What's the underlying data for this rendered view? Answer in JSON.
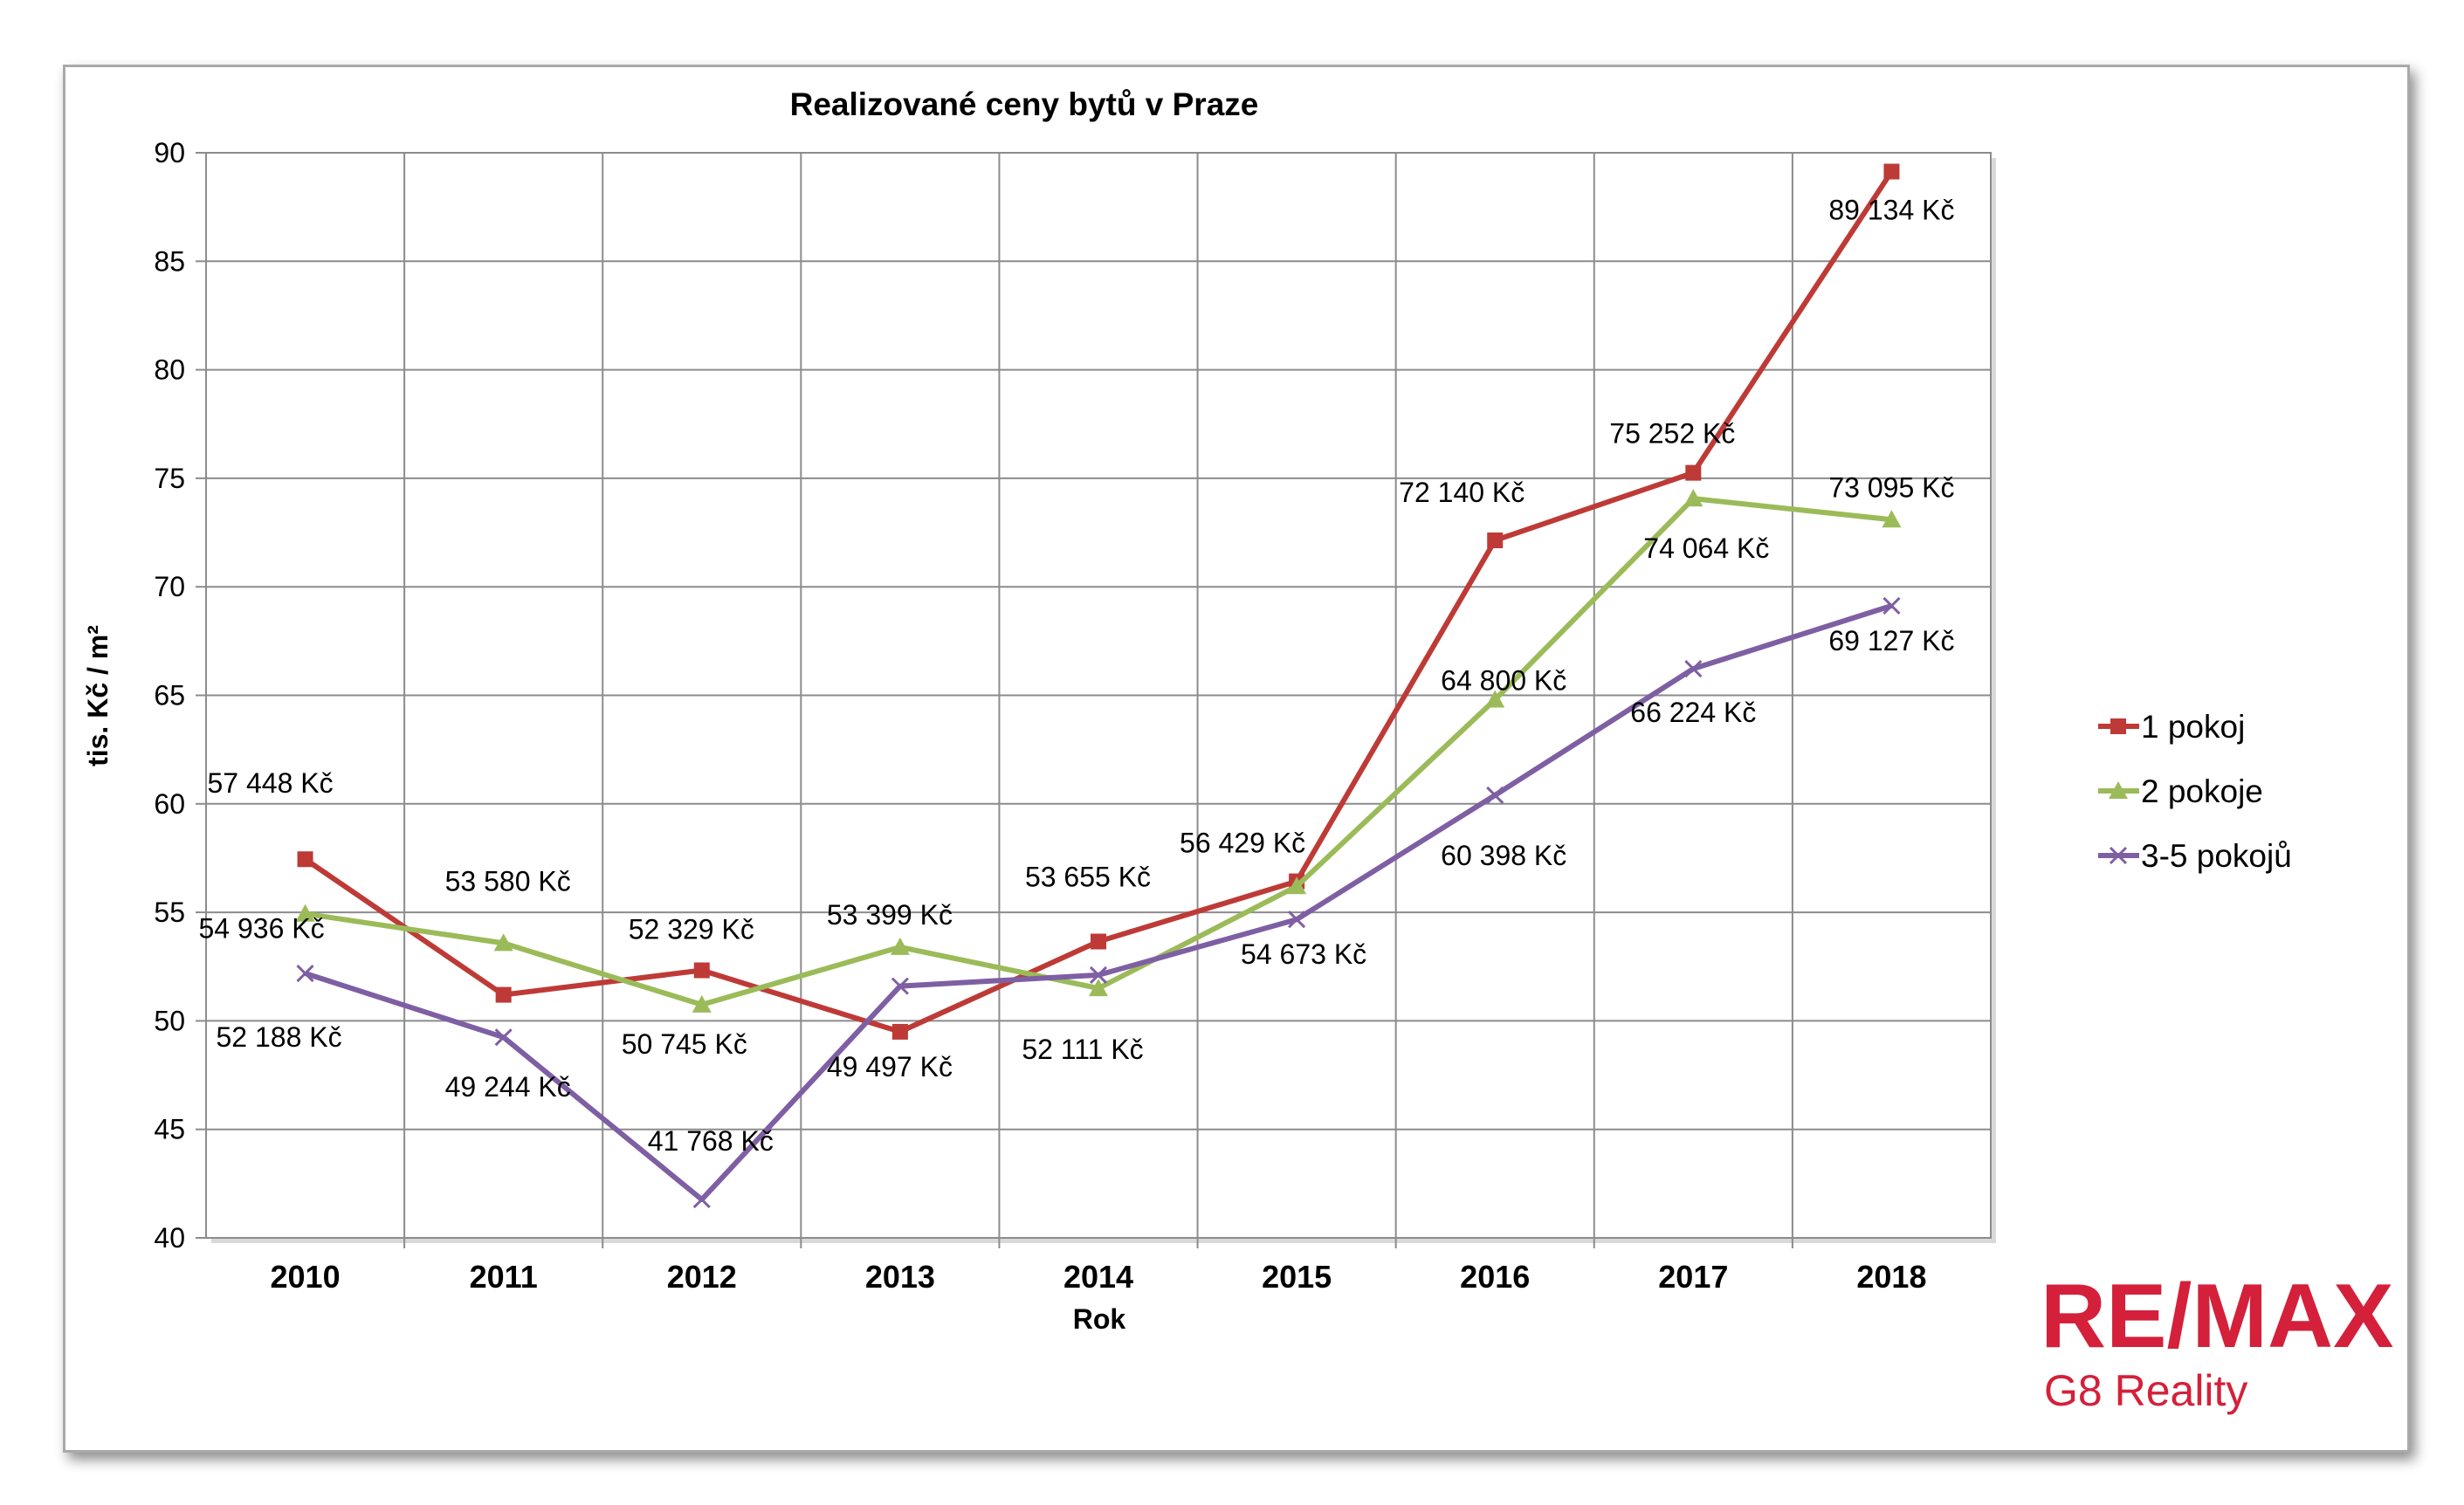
{
  "chart_data": {
    "type": "line",
    "title": "Realizované ceny bytů v Praze",
    "xlabel": "Rok",
    "ylabel": "tis. Kč / m²",
    "ylim": [
      40,
      90
    ],
    "yticks": [
      40,
      45,
      50,
      55,
      60,
      65,
      70,
      75,
      80,
      85,
      90
    ],
    "categories": [
      "2010",
      "2011",
      "2012",
      "2013",
      "2014",
      "2015",
      "2016",
      "2017",
      "2018"
    ],
    "grid": true,
    "legend_position": "right",
    "series": [
      {
        "name": "1 pokoj",
        "color": "#be3a36",
        "marker": "square",
        "values": [
          57.448,
          51.2,
          52.329,
          49.497,
          53.655,
          56.429,
          72.14,
          75.252,
          89.134
        ],
        "labels": [
          "57 448 Kč",
          "",
          "52 329 Kč",
          "49 497 Kč",
          "53 655 Kč",
          "56 429 Kč",
          "72 140 Kč",
          "75 252 Kč",
          "89 134 Kč"
        ]
      },
      {
        "name": "2 pokoje",
        "color": "#9bbb59",
        "marker": "triangle",
        "values": [
          54.936,
          53.58,
          50.745,
          53.399,
          51.5,
          56.2,
          64.8,
          74.064,
          73.095
        ],
        "labels": [
          "54 936 Kč",
          "53 580 Kč",
          "50 745 Kč",
          "53 399 Kč",
          "",
          "",
          "64 800 Kč",
          "74 064 Kč",
          "73 095 Kč"
        ]
      },
      {
        "name": "3-5 pokojů",
        "color": "#7e5fa3",
        "marker": "x",
        "values": [
          52.188,
          49.244,
          41.768,
          51.6,
          52.111,
          54.673,
          60.398,
          66.224,
          69.127
        ],
        "labels": [
          "52 188 Kč",
          "49 244 Kč",
          "41 768 Kč",
          "",
          "52 111 Kč",
          "54 673 Kč",
          "60 398 Kč",
          "66 224 Kč",
          "69 127 Kč"
        ]
      }
    ]
  },
  "logo": {
    "brand": "RE/MAX",
    "subtitle": "G8 Reality",
    "color": "#d4203a",
    "accent": "#1f3b8c"
  }
}
